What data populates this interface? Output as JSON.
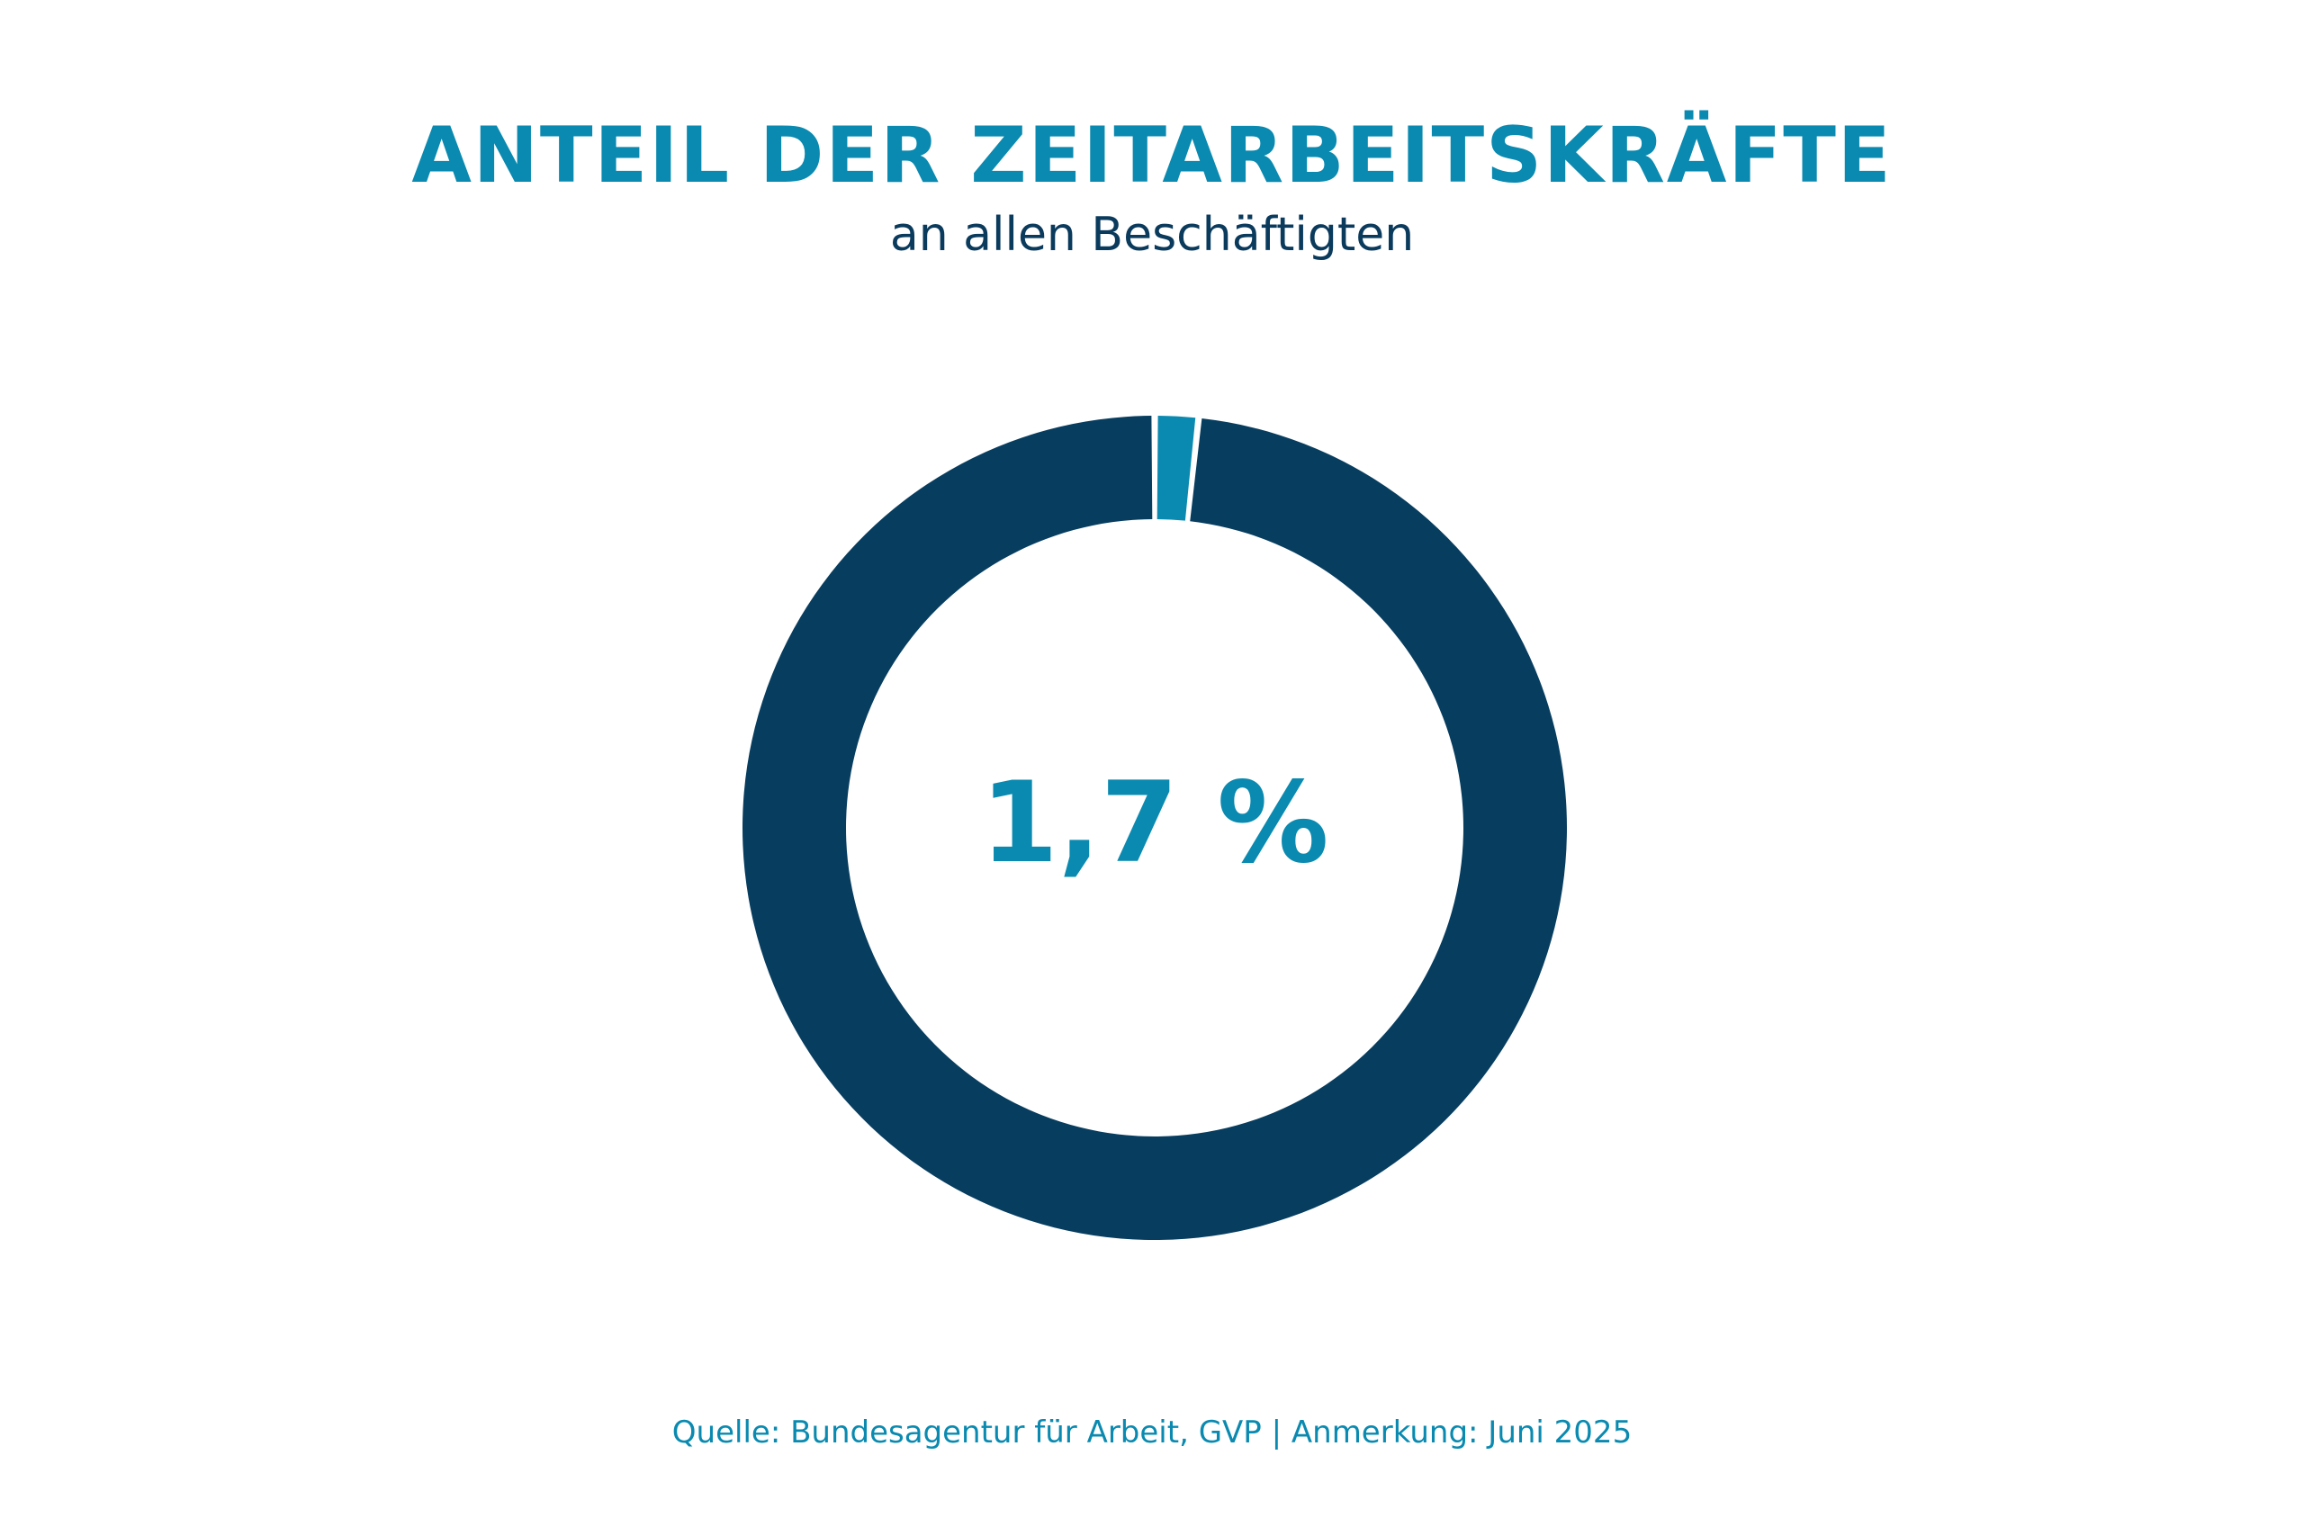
{
  "chart_data": {
    "type": "pie",
    "title": "ANTEIL DER ZEITARBEITSKRÄFTE",
    "subtitle": "an allen Beschäftigten",
    "center_label": "1,7 %",
    "slices": [
      {
        "value": 1.7,
        "color": "#0a8ab0"
      },
      {
        "value": 98.3,
        "color": "#073d5f"
      }
    ],
    "donut": true,
    "source": "Quelle: Bundesagentur für Arbeit, GVP | Anmerkung: Juni 2025"
  }
}
